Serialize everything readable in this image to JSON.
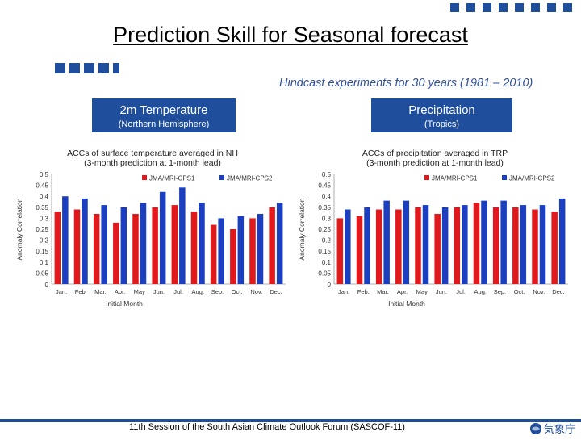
{
  "slide": {
    "title": "Prediction Skill for Seasonal forecast",
    "subtitle": "Hindcast experiments for 30 years (1981 – 2010)",
    "footer": "11th Session of the South Asian Climate Outlook Forum (SASCOF-11)",
    "logo_text": "気象庁",
    "left_box": {
      "main": "2m Temperature",
      "sub": "(Northern Hemisphere)"
    },
    "right_box": {
      "main": "Precipitation",
      "sub": "(Tropics)"
    },
    "colors": {
      "accent": "#1f4e9c",
      "series1": "#e0191c",
      "series2": "#1c3fbf"
    }
  },
  "chart_data": [
    {
      "type": "bar",
      "title": "ACCs of surface temperature averaged in NH",
      "subtitle": "(3-month prediction at 1-month lead)",
      "xlabel": "Initial Month",
      "ylabel": "Anomaly Correlation",
      "ylim": [
        0,
        0.5
      ],
      "yticks": [
        "0",
        "0.05",
        "0.1",
        "0.15",
        "0.2",
        "0.25",
        "0.3",
        "0.35",
        "0.4",
        "0.45",
        "0.5"
      ],
      "categories": [
        "Jan.",
        "Feb.",
        "Mar.",
        "Apr.",
        "May",
        "Jun.",
        "Jul.",
        "Aug.",
        "Sep.",
        "Oct.",
        "Nov.",
        "Dec."
      ],
      "series": [
        {
          "name": "JMA/MRI-CPS1",
          "values": [
            0.33,
            0.34,
            0.32,
            0.28,
            0.32,
            0.35,
            0.36,
            0.33,
            0.27,
            0.25,
            0.3,
            0.35
          ]
        },
        {
          "name": "JMA/MRI-CPS2",
          "values": [
            0.4,
            0.39,
            0.36,
            0.35,
            0.37,
            0.42,
            0.44,
            0.37,
            0.3,
            0.31,
            0.32,
            0.37
          ]
        }
      ],
      "legend": "top"
    },
    {
      "type": "bar",
      "title": "ACCs of precipitation averaged in TRP",
      "subtitle": "(3-month prediction at 1-month lead)",
      "xlabel": "Initial Month",
      "ylabel": "Anomaly Correlation",
      "ylim": [
        0,
        0.5
      ],
      "yticks": [
        "0",
        "0.05",
        "0.1",
        "0.15",
        "0.2",
        "0.25",
        "0.3",
        "0.35",
        "0.4",
        "0.45",
        "0.5"
      ],
      "categories": [
        "Jan.",
        "Feb.",
        "Mar.",
        "Apr.",
        "May",
        "Jun.",
        "Jul.",
        "Aug.",
        "Sep.",
        "Oct.",
        "Nov.",
        "Dec."
      ],
      "series": [
        {
          "name": "JMA/MRI-CPS1",
          "values": [
            0.3,
            0.31,
            0.34,
            0.34,
            0.35,
            0.32,
            0.35,
            0.37,
            0.35,
            0.35,
            0.34,
            0.33
          ]
        },
        {
          "name": "JMA/MRI-CPS2",
          "values": [
            0.34,
            0.35,
            0.38,
            0.38,
            0.36,
            0.35,
            0.36,
            0.38,
            0.38,
            0.36,
            0.36,
            0.39
          ]
        }
      ],
      "legend": "top"
    }
  ]
}
